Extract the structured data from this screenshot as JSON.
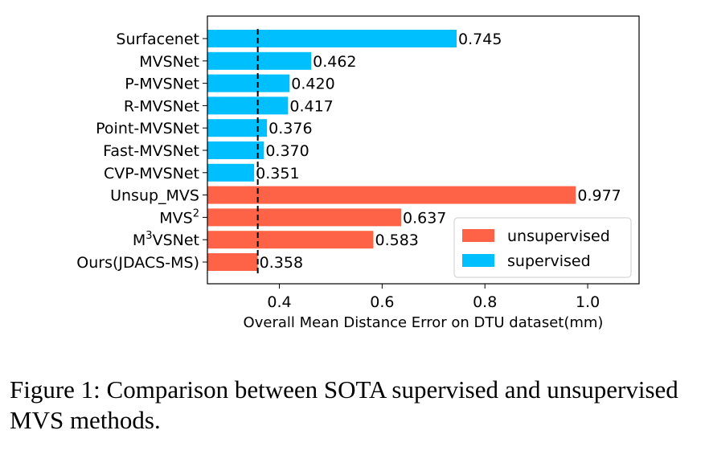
{
  "chart_data": {
    "type": "bar",
    "orientation": "horizontal",
    "xlabel": "Overall Mean Distance Error on DTU dataset(mm)",
    "ylabel": "",
    "xlim": [
      0.26,
      1.1
    ],
    "xticks": [
      "0.4",
      "0.6",
      "0.8",
      "1.0"
    ],
    "xtick_values": [
      0.4,
      0.6,
      0.8,
      1.0
    ],
    "reference_line": {
      "x": 0.358,
      "style": "dashed",
      "color": "#000000"
    },
    "categories": [
      {
        "label": "Surfacenet",
        "sup": ""
      },
      {
        "label": "MVSNet",
        "sup": ""
      },
      {
        "label": "P-MVSNet",
        "sup": ""
      },
      {
        "label": "R-MVSNet",
        "sup": ""
      },
      {
        "label": "Point-MVSNet",
        "sup": ""
      },
      {
        "label": "Fast-MVSNet",
        "sup": ""
      },
      {
        "label": "CVP-MVSNet",
        "sup": ""
      },
      {
        "label": "Unsup_MVS",
        "sup": ""
      },
      {
        "label": "MVS",
        "sup": "2"
      },
      {
        "label": "M",
        "sup": "3",
        "suffix": "VSNet"
      },
      {
        "label": "Ours(JDACS-MS)",
        "sup": ""
      }
    ],
    "values": [
      0.745,
      0.462,
      0.42,
      0.417,
      0.376,
      0.37,
      0.351,
      0.977,
      0.637,
      0.583,
      0.358
    ],
    "value_labels": [
      "0.745",
      "0.462",
      "0.420",
      "0.417",
      "0.376",
      "0.370",
      "0.351",
      "0.977",
      "0.637",
      "0.583",
      "0.358"
    ],
    "groups": [
      "supervised",
      "supervised",
      "supervised",
      "supervised",
      "supervised",
      "supervised",
      "supervised",
      "unsupervised",
      "unsupervised",
      "unsupervised",
      "unsupervised"
    ],
    "colors": {
      "supervised": "#00bfff",
      "unsupervised": "#ff6347"
    },
    "legend": {
      "placement": "lower-right",
      "entries": [
        {
          "name": "unsupervised",
          "color": "#ff6347"
        },
        {
          "name": "supervised",
          "color": "#00bfff"
        }
      ]
    }
  },
  "caption": "Figure 1: Comparison between SOTA supervised and unsupervised MVS methods."
}
